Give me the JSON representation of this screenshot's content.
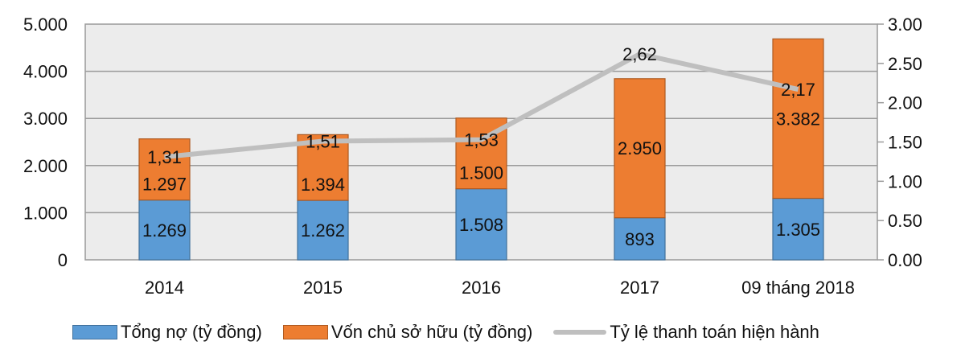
{
  "chart_data": {
    "type": "bar",
    "stacked": true,
    "title": "",
    "xlabel": "",
    "ylabel": "",
    "categories": [
      "2014",
      "2015",
      "2016",
      "2017",
      "09 tháng 2018"
    ],
    "series": [
      {
        "name": "Tổng nợ (tỷ đồng)",
        "type": "bar",
        "axis": "left",
        "color": "#5b9bd5",
        "values": [
          1269,
          1262,
          1508,
          893,
          1305
        ],
        "labels": [
          "1.269",
          "1.262",
          "1.508",
          "893",
          "1.305"
        ]
      },
      {
        "name": "Vốn chủ sở hữu (tỷ đồng)",
        "type": "bar",
        "axis": "left",
        "color": "#ed7d31",
        "values": [
          1297,
          1394,
          1500,
          2950,
          3382
        ],
        "labels": [
          "1.297",
          "1.394",
          "1.500",
          "2.950",
          "3.382"
        ]
      },
      {
        "name": "Tỷ lệ thanh toán hiện hành",
        "type": "line",
        "axis": "right",
        "color": "#bfbfbf",
        "values": [
          1.31,
          1.51,
          1.53,
          2.62,
          2.17
        ],
        "labels": [
          "1,31",
          "1,51",
          "1,53",
          "2,62",
          "2,17"
        ]
      }
    ],
    "ylim": [
      0,
      5000
    ],
    "y2lim": [
      0,
      3.0
    ],
    "yticks": [
      "0",
      "1.000",
      "2.000",
      "3.000",
      "4.000",
      "5.000"
    ],
    "y2ticks": [
      "0.00",
      "0.50",
      "1.00",
      "1.50",
      "2.00",
      "2.50",
      "3.00"
    ],
    "grid": true,
    "legend_position": "bottom"
  },
  "legend": {
    "items": [
      "Tổng nợ (tỷ đồng)",
      "Vốn chủ sở hữu (tỷ đồng)",
      "Tỷ lệ thanh toán hiện hành"
    ]
  }
}
